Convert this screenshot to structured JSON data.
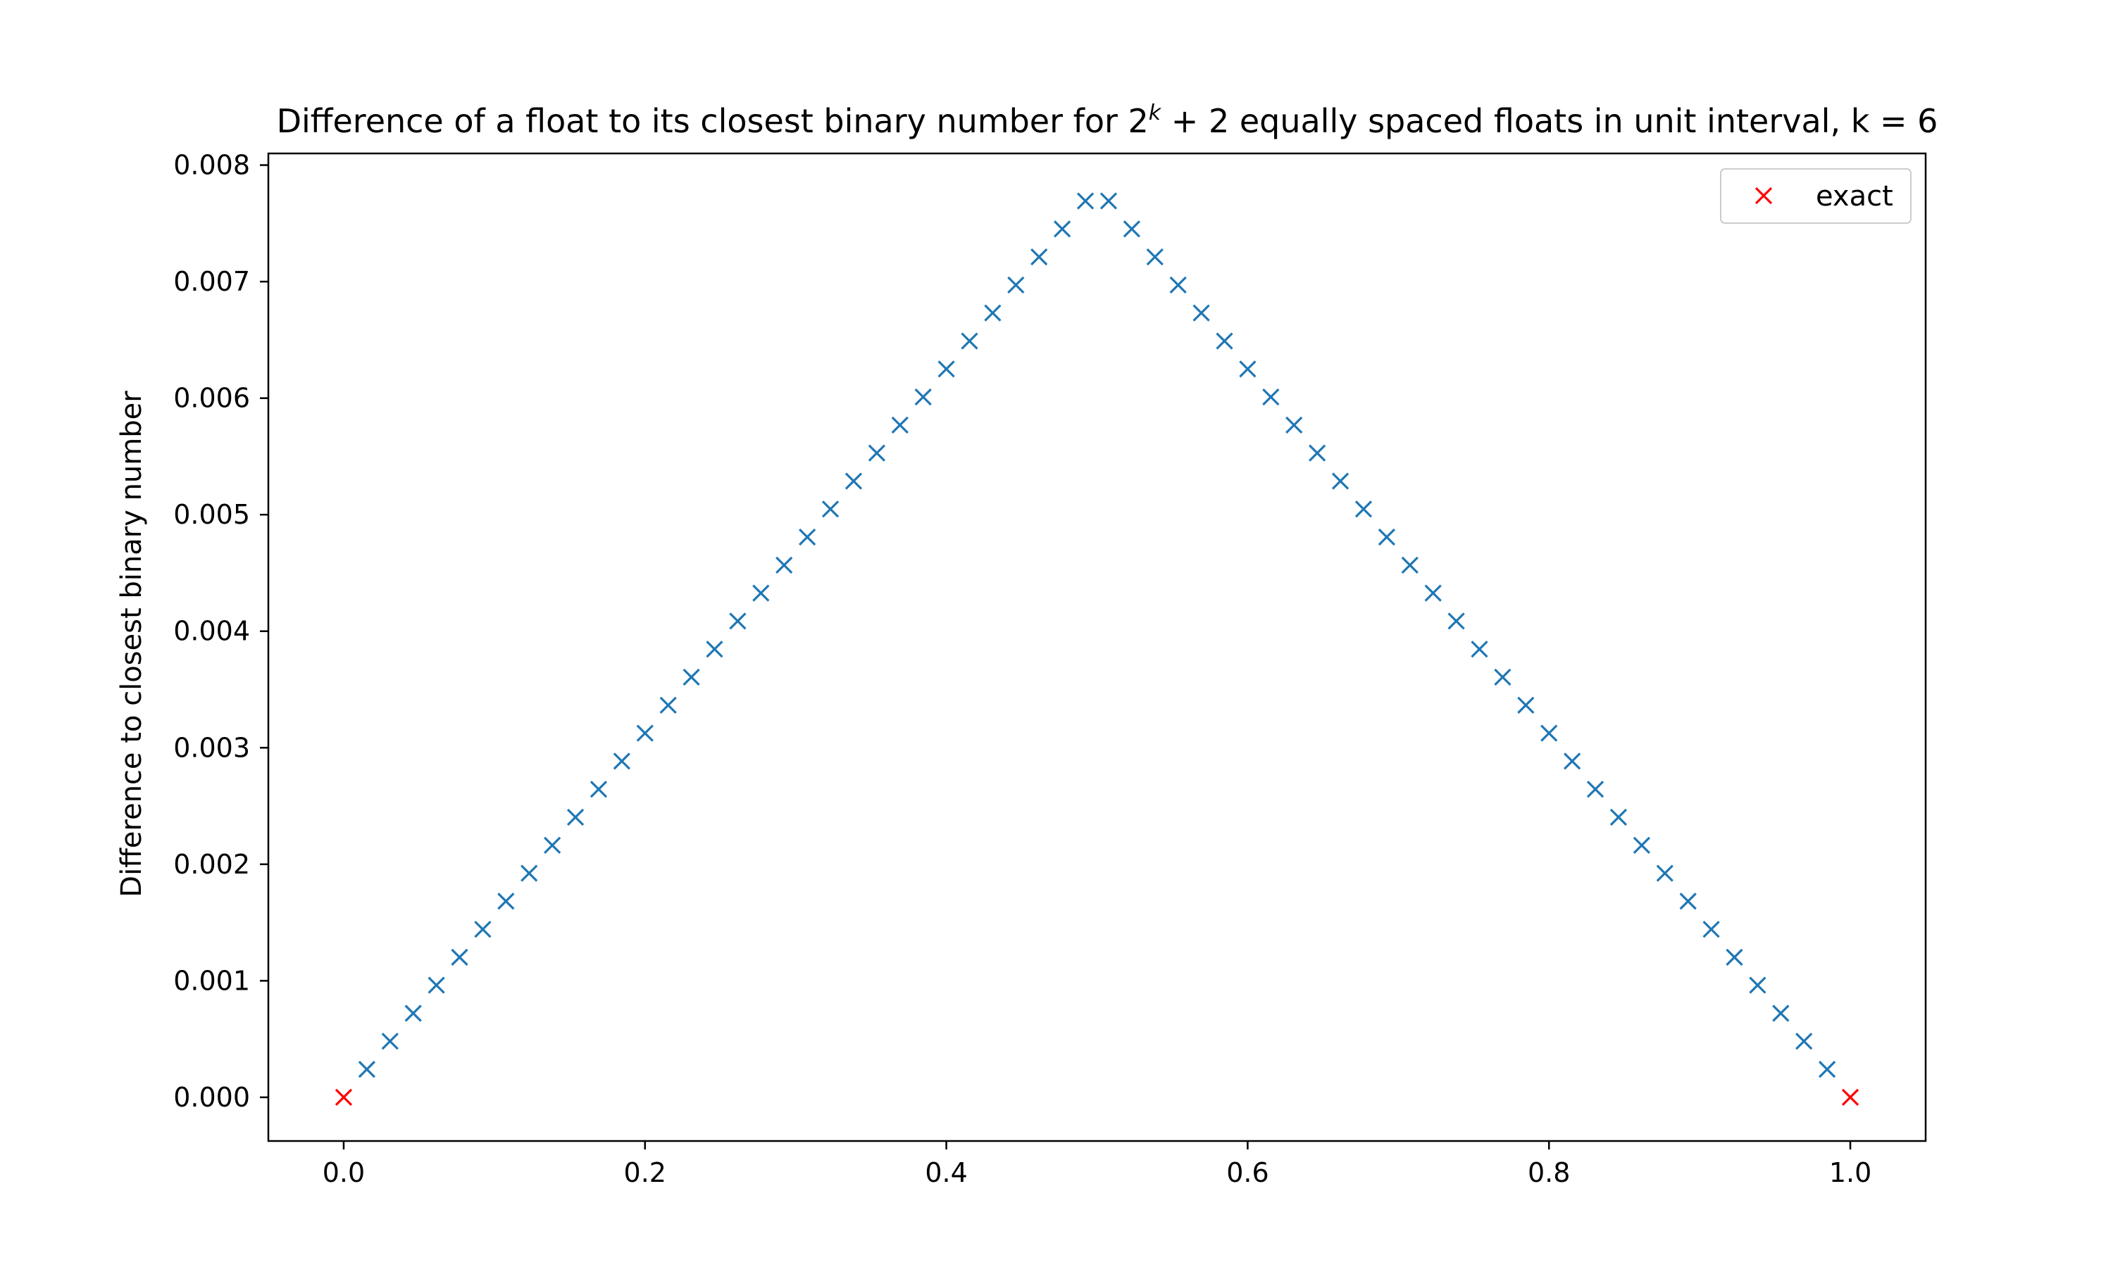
{
  "chart_data": {
    "type": "scatter",
    "title": {
      "before": "Difference of a float to its closest binary number for 2",
      "sup": "k",
      "after": " + 2 equally spaced floats in unit interval, k = 6"
    },
    "xlabel": "",
    "ylabel": "Difference to closest binary number",
    "xlim": [
      -0.05,
      1.05
    ],
    "ylim": [
      -0.000375,
      0.0081
    ],
    "xticks": [
      0.0,
      0.2,
      0.4,
      0.6,
      0.8,
      1.0
    ],
    "xtick_labels": [
      "0.0",
      "0.2",
      "0.4",
      "0.6",
      "0.8",
      "1.0"
    ],
    "yticks": [
      0.0,
      0.001,
      0.002,
      0.003,
      0.004,
      0.005,
      0.006,
      0.007,
      0.008
    ],
    "ytick_labels": [
      "0.000",
      "0.001",
      "0.002",
      "0.003",
      "0.004",
      "0.005",
      "0.006",
      "0.007",
      "0.008"
    ],
    "grid": false,
    "legend_position": "upper-right",
    "marker": "x",
    "series": [
      {
        "name": "",
        "color": "#1f77b4",
        "points": [
          [
            0.015385,
            0.00024
          ],
          [
            0.030769,
            0.000481
          ],
          [
            0.046154,
            0.000721
          ],
          [
            0.061538,
            0.000962
          ],
          [
            0.076923,
            0.001202
          ],
          [
            0.092308,
            0.001442
          ],
          [
            0.107692,
            0.001683
          ],
          [
            0.123077,
            0.001923
          ],
          [
            0.138462,
            0.002163
          ],
          [
            0.153846,
            0.002404
          ],
          [
            0.169231,
            0.002644
          ],
          [
            0.184615,
            0.002885
          ],
          [
            0.2,
            0.003125
          ],
          [
            0.215385,
            0.003365
          ],
          [
            0.230769,
            0.003606
          ],
          [
            0.246154,
            0.003846
          ],
          [
            0.261538,
            0.004087
          ],
          [
            0.276923,
            0.004327
          ],
          [
            0.292308,
            0.004567
          ],
          [
            0.307692,
            0.004808
          ],
          [
            0.323077,
            0.005048
          ],
          [
            0.338462,
            0.005288
          ],
          [
            0.353846,
            0.005529
          ],
          [
            0.369231,
            0.005769
          ],
          [
            0.384615,
            0.00601
          ],
          [
            0.4,
            0.00625
          ],
          [
            0.415385,
            0.00649
          ],
          [
            0.430769,
            0.006731
          ],
          [
            0.446154,
            0.006971
          ],
          [
            0.461538,
            0.007212
          ],
          [
            0.476923,
            0.007452
          ],
          [
            0.492308,
            0.007692
          ],
          [
            0.507692,
            0.007692
          ],
          [
            0.523077,
            0.007452
          ],
          [
            0.538462,
            0.007212
          ],
          [
            0.553846,
            0.006971
          ],
          [
            0.569231,
            0.006731
          ],
          [
            0.584615,
            0.00649
          ],
          [
            0.6,
            0.00625
          ],
          [
            0.615385,
            0.00601
          ],
          [
            0.630769,
            0.005769
          ],
          [
            0.646154,
            0.005529
          ],
          [
            0.661538,
            0.005288
          ],
          [
            0.676923,
            0.005048
          ],
          [
            0.692308,
            0.004808
          ],
          [
            0.707692,
            0.004567
          ],
          [
            0.723077,
            0.004327
          ],
          [
            0.738462,
            0.004087
          ],
          [
            0.753846,
            0.003846
          ],
          [
            0.769231,
            0.003606
          ],
          [
            0.784615,
            0.003365
          ],
          [
            0.8,
            0.003125
          ],
          [
            0.815385,
            0.002885
          ],
          [
            0.830769,
            0.002644
          ],
          [
            0.846154,
            0.002404
          ],
          [
            0.861538,
            0.002163
          ],
          [
            0.876923,
            0.001923
          ],
          [
            0.892308,
            0.001683
          ],
          [
            0.907692,
            0.001442
          ],
          [
            0.923077,
            0.001202
          ],
          [
            0.938462,
            0.000962
          ],
          [
            0.953846,
            0.000721
          ],
          [
            0.969231,
            0.000481
          ],
          [
            0.984615,
            0.00024
          ]
        ]
      },
      {
        "name": "exact",
        "color": "#ff0000",
        "points": [
          [
            0.0,
            0.0
          ],
          [
            1.0,
            0.0
          ]
        ]
      }
    ]
  }
}
